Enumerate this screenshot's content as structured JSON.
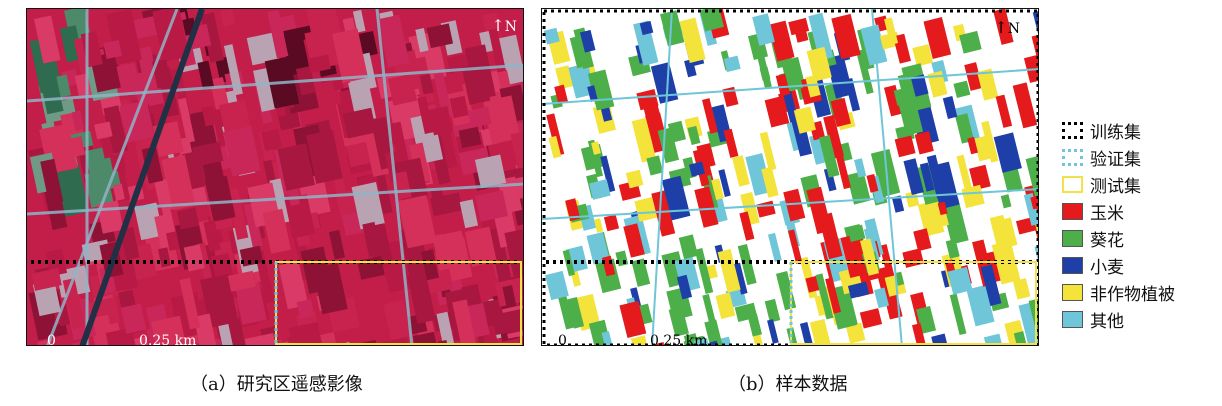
{
  "panel_a": {
    "north_label": "N",
    "scale_zero": "0",
    "scale_distance": "0.25 km",
    "caption": "（a）研究区遥感影像"
  },
  "panel_b": {
    "north_label": "N",
    "scale_zero": "0",
    "scale_distance": "0.25 km",
    "caption": "（b）样本数据"
  },
  "legend": {
    "items": [
      {
        "label": "训练集",
        "style": "dotted",
        "color": "#000000",
        "icon": "dotted-box-icon"
      },
      {
        "label": "验证集",
        "style": "dotted",
        "color": "#6ec6d8",
        "icon": "dotted-box-icon"
      },
      {
        "label": "测试集",
        "style": "outline",
        "color": "#f2e14a",
        "icon": "outline-box-icon"
      },
      {
        "label": "玉米",
        "style": "fill",
        "color": "#e41a1c",
        "icon": "swatch-icon"
      },
      {
        "label": "葵花",
        "style": "fill",
        "color": "#4daf4a",
        "icon": "swatch-icon"
      },
      {
        "label": "小麦",
        "style": "fill",
        "color": "#1f3fa8",
        "icon": "swatch-icon"
      },
      {
        "label": "非作物植被",
        "style": "fill",
        "color": "#f3e33b",
        "icon": "swatch-icon"
      },
      {
        "label": "其他",
        "style": "fill",
        "color": "#6ec6d8",
        "icon": "swatch-icon"
      }
    ]
  }
}
